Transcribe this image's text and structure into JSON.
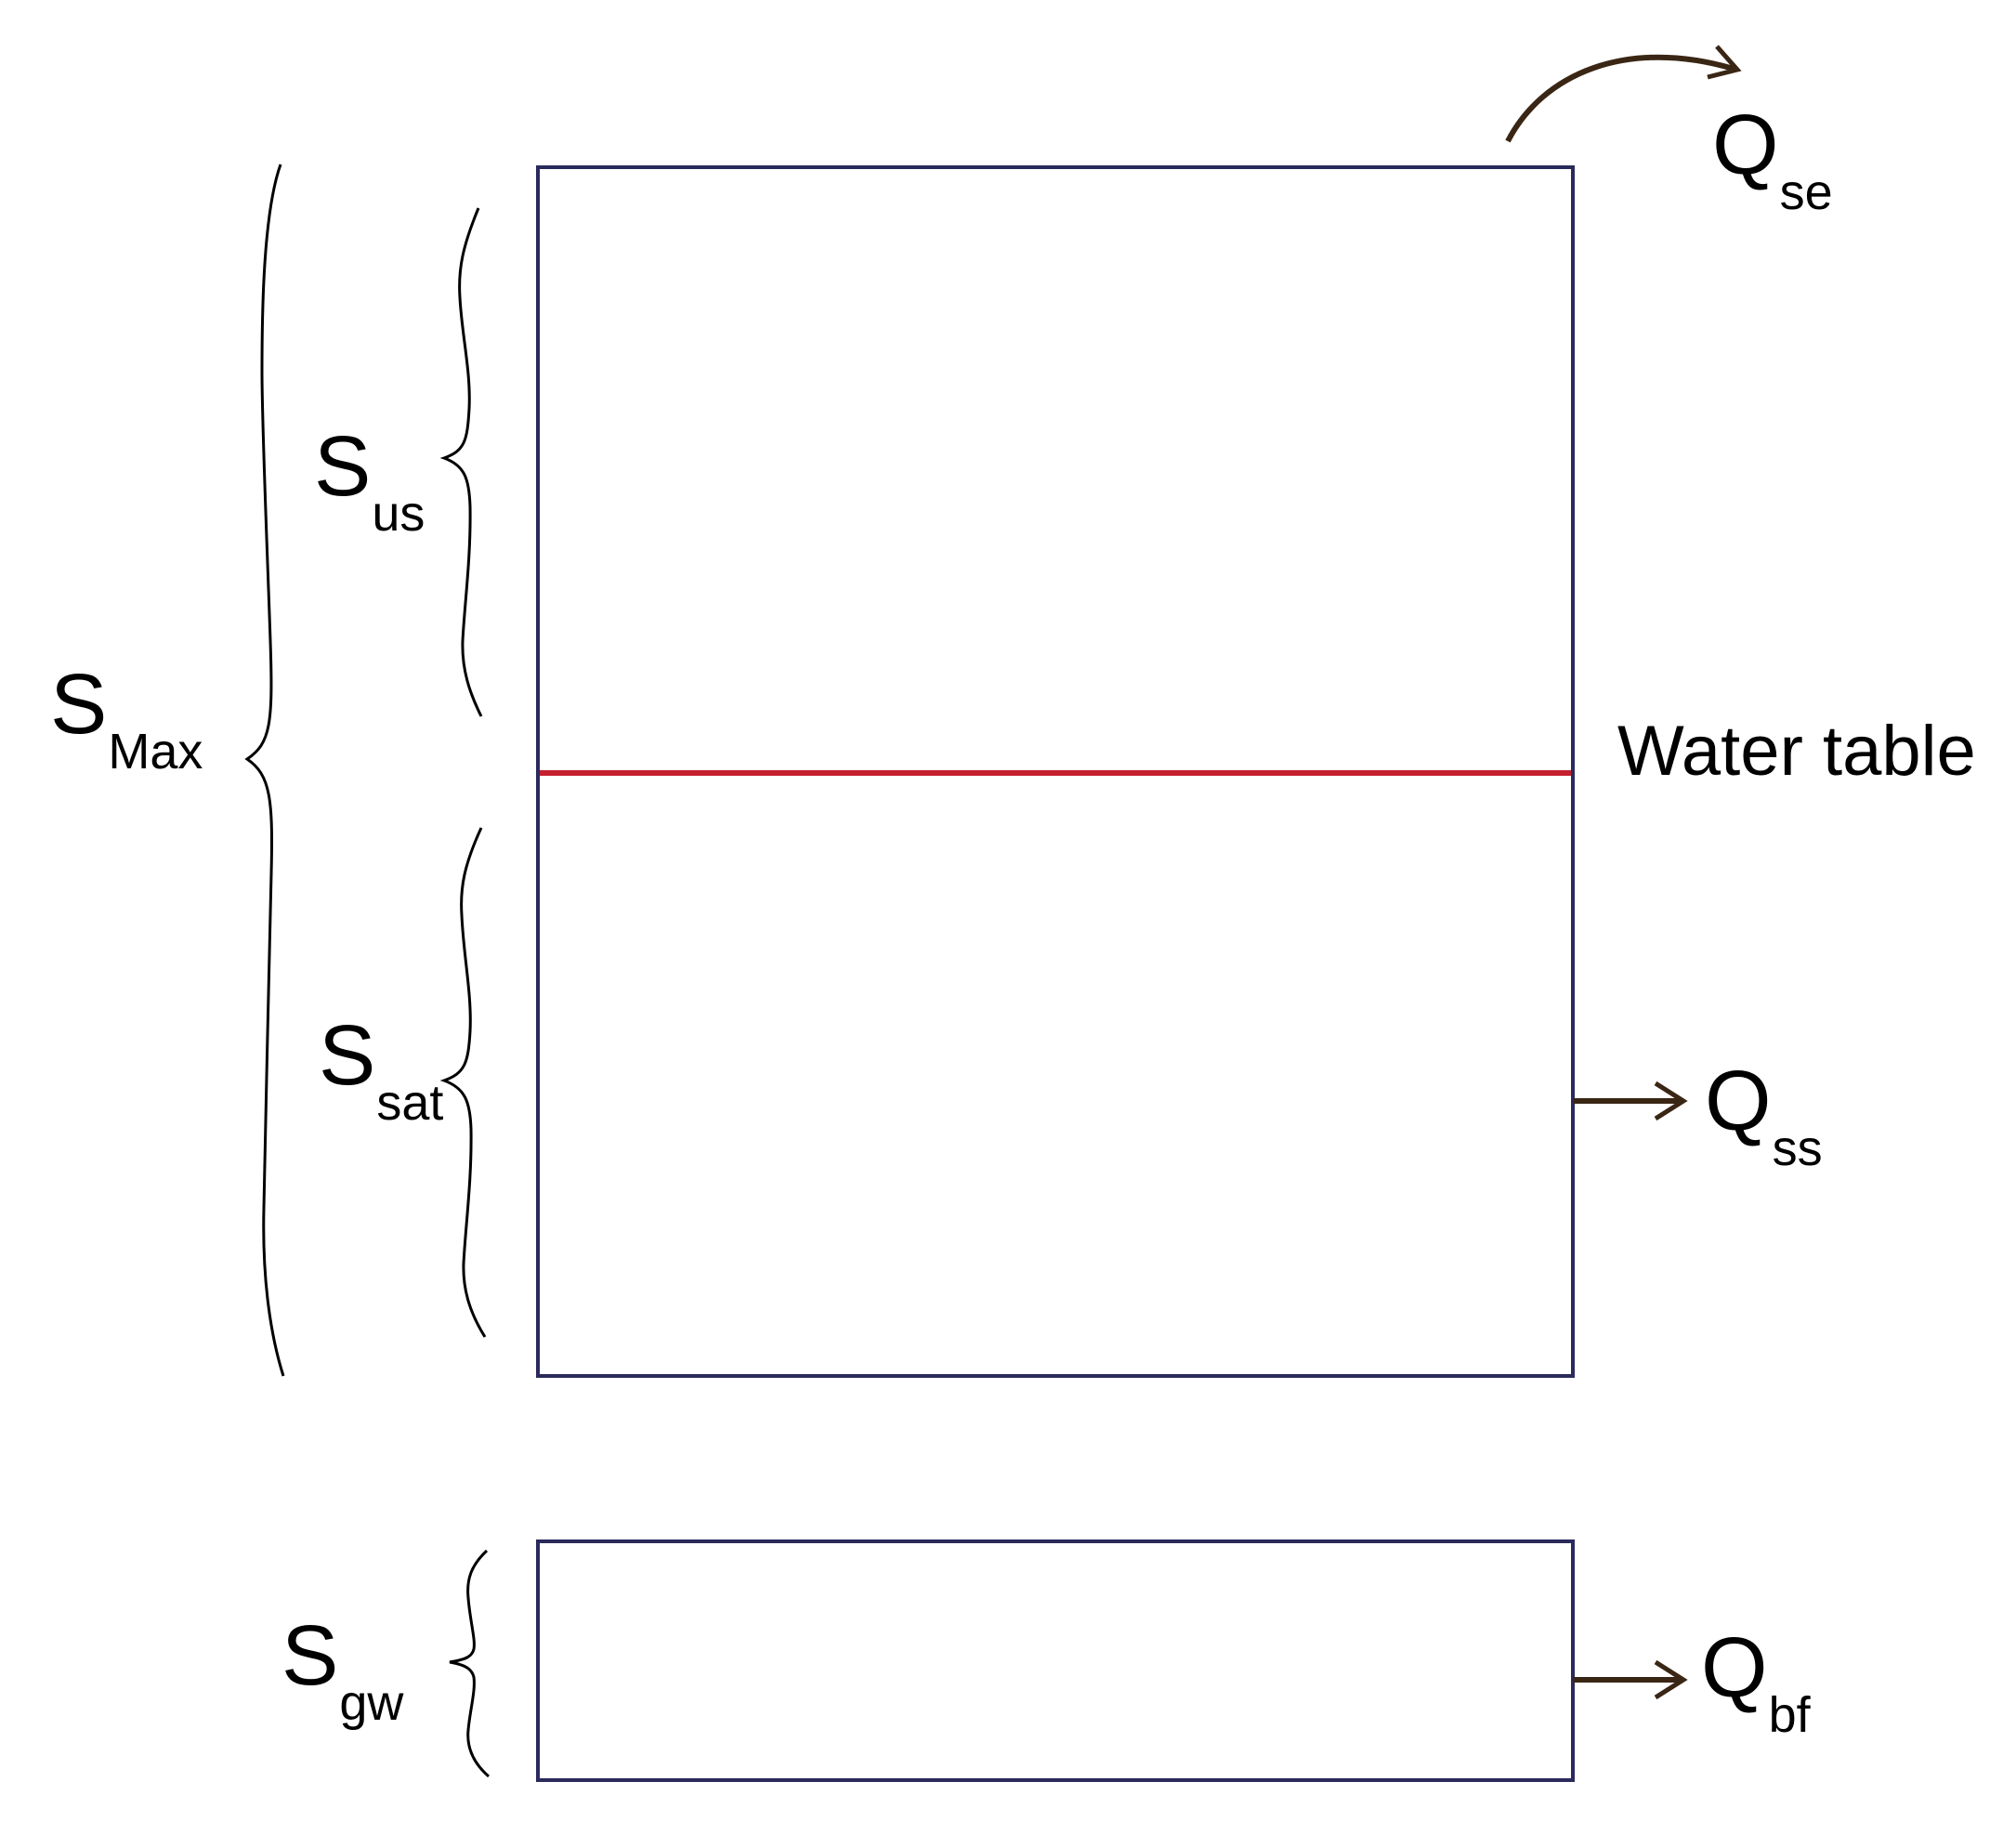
{
  "labels": {
    "s_max": {
      "base": "S",
      "sub": "Max"
    },
    "s_us": {
      "base": "S",
      "sub": "us"
    },
    "s_sat": {
      "base": "S",
      "sub": "sat"
    },
    "s_gw": {
      "base": "S",
      "sub": "gw"
    },
    "q_se": {
      "base": "Q",
      "sub": "se"
    },
    "q_ss": {
      "base": "Q",
      "sub": "ss"
    },
    "q_bf": {
      "base": "Q",
      "sub": "bf"
    },
    "water_table": "Water table"
  },
  "colors": {
    "box_stroke": "#2b2a5c",
    "water_table_line": "#c4202e",
    "arrow": "#3a2614",
    "brace": "#000000",
    "text": "#000000"
  }
}
